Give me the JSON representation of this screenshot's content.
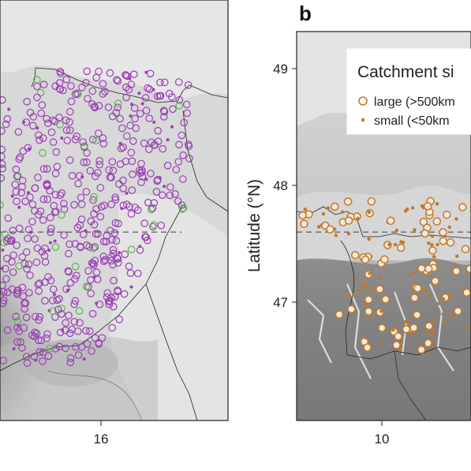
{
  "panels": [
    {
      "id": "a",
      "letter": "",
      "x_ticks": [
        "16"
      ],
      "y_ticks": [],
      "y_label": "",
      "reference_latitude": 47.6
    },
    {
      "id": "b",
      "letter": "b",
      "x_ticks": [
        "10"
      ],
      "y_ticks": [
        "49",
        "48",
        "47"
      ],
      "y_label": "Latitude (°N)",
      "reference_latitude": 47.6
    }
  ],
  "legend": {
    "title": "Catchment si",
    "items": [
      {
        "label": "large (>500km",
        "symbol": "open-circle",
        "color": "#c0782a"
      },
      {
        "label": "small (<50km",
        "symbol": "filled-dot",
        "color": "#c0782a"
      }
    ]
  },
  "colors": {
    "panel_a_primary": "#9a3fb5",
    "panel_a_secondary": "#55b84a",
    "panel_b_marker": "#c0782a",
    "reference_line": "#666666",
    "border": "#222222"
  }
}
